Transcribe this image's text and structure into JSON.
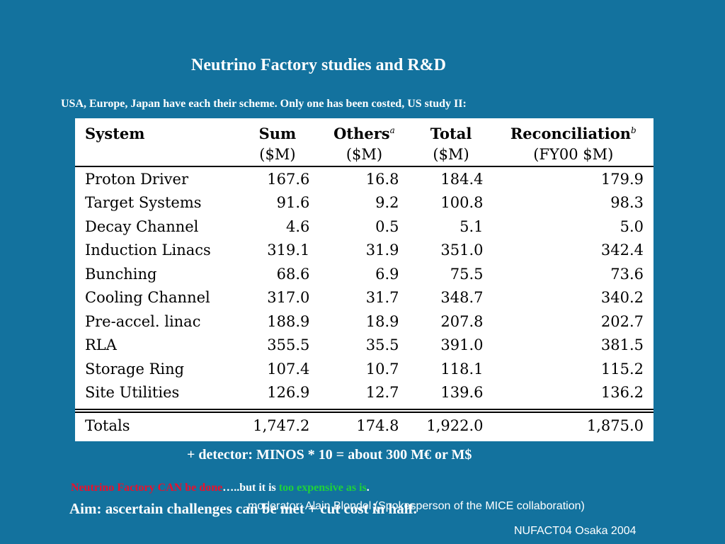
{
  "title": "Neutrino Factory studies and R&D",
  "intro": "USA, Europe, Japan have each their scheme. Only one has been costed, US study II:",
  "table": {
    "headers": [
      "System",
      "Sum",
      "Others",
      "Total",
      "Reconciliation"
    ],
    "header_superscripts": {
      "others": "a",
      "reconciliation": "b"
    },
    "units": [
      "",
      "($M)",
      "($M)",
      "($M)",
      "(FY00 $M)"
    ],
    "rows": [
      [
        "Proton Driver",
        "167.6",
        "16.8",
        "184.4",
        "179.9"
      ],
      [
        "Target Systems",
        "91.6",
        "9.2",
        "100.8",
        "98.3"
      ],
      [
        "Decay Channel",
        "4.6",
        "0.5",
        "5.1",
        "5.0"
      ],
      [
        "Induction Linacs",
        "319.1",
        "31.9",
        "351.0",
        "342.4"
      ],
      [
        "Bunching",
        "68.6",
        "6.9",
        "75.5",
        "73.6"
      ],
      [
        "Cooling Channel",
        "317.0",
        "31.7",
        "348.7",
        "340.2"
      ],
      [
        "Pre-accel. linac",
        "188.9",
        "18.9",
        "207.8",
        "202.7"
      ],
      [
        "RLA",
        "355.5",
        "35.5",
        "391.0",
        "381.5"
      ],
      [
        "Storage Ring",
        "107.4",
        "10.7",
        "118.1",
        "115.2"
      ],
      [
        "Site Utilities",
        "126.9",
        "12.7",
        "139.6",
        "136.2"
      ]
    ],
    "totals": [
      "Totals",
      "1,747.2",
      "174.8",
      "1,922.0",
      "1,875.0"
    ]
  },
  "detector_line": "+ detector:  MINOS * 10 = about 300  M€  or  M$",
  "bottom_line": {
    "part1": "Neutrino Factory CAN be done",
    "part2": "…..but it is ",
    "part3": "too expensive as is",
    "part4": "."
  },
  "aim_line": "Aim: ascertain challenges can be met + cut cost in half.",
  "moderator": "moderator: Alain Blondel (Spokesperson of the MICE collaboration)",
  "conference": "NUFACT04 Osaka 2004",
  "colors": {
    "background": "#13729e",
    "red_text": "#e8112d",
    "green_text": "#1fd13b"
  }
}
